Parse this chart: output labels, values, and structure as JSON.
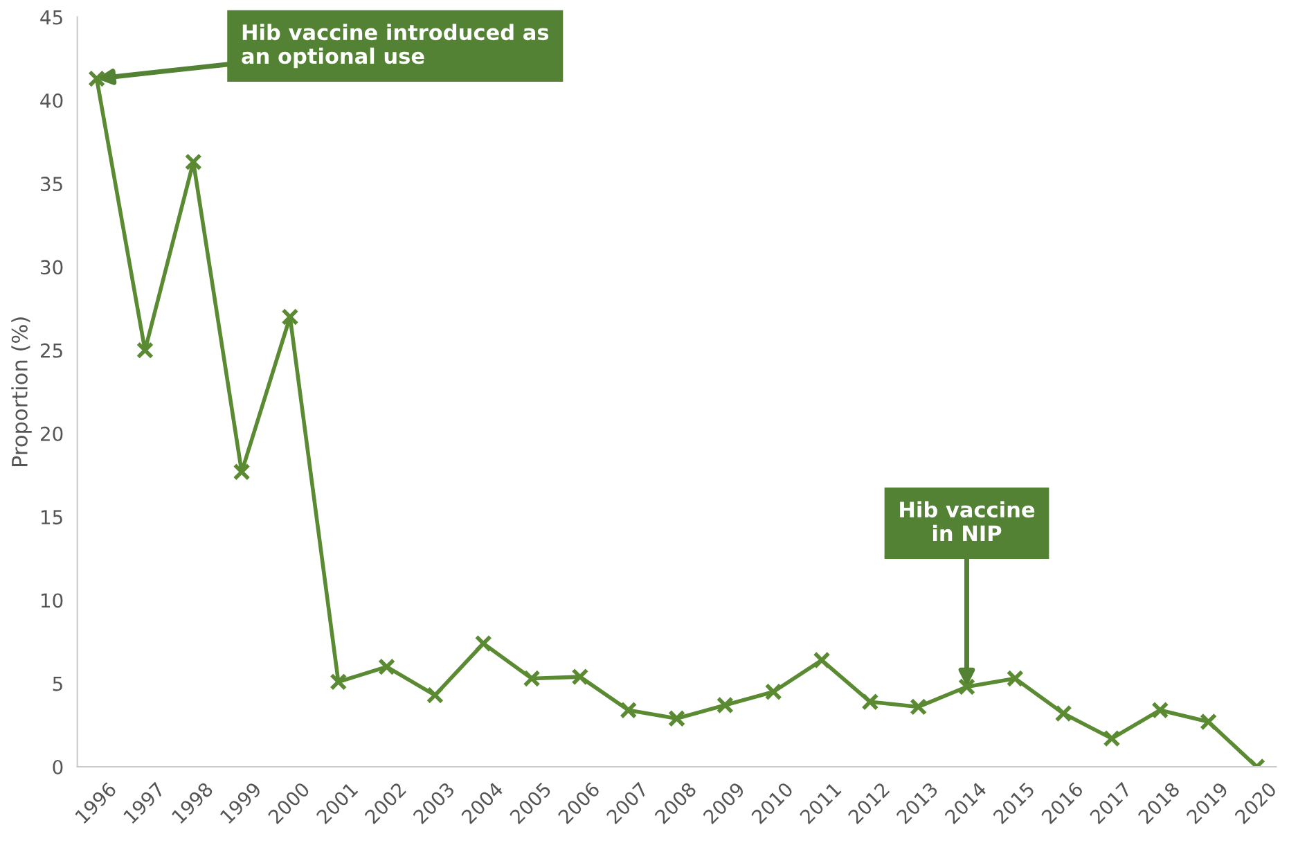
{
  "chart_data": {
    "type": "line",
    "ylabel": "Proportion (%)",
    "categories": [
      "1996",
      "1997",
      "1998",
      "1999",
      "2000",
      "2001",
      "2002",
      "2003",
      "2004",
      "2005",
      "2006",
      "2007",
      "2008",
      "2009",
      "2010",
      "2011",
      "2012",
      "2013",
      "2014",
      "2015",
      "2016",
      "2017",
      "2018",
      "2019",
      "2020"
    ],
    "series": [
      {
        "color": "#5a8a32",
        "values": [
          41.3,
          25.0,
          36.3,
          17.7,
          27.0,
          5.1,
          6.0,
          4.3,
          7.4,
          5.3,
          5.4,
          3.4,
          2.9,
          3.7,
          4.5,
          6.4,
          3.9,
          3.6,
          4.8,
          5.3,
          3.2,
          1.7,
          3.4,
          2.7,
          0
        ]
      }
    ],
    "ylim": [
      0,
      45
    ],
    "yticks": [
      0,
      5,
      10,
      15,
      20,
      25,
      30,
      35,
      40,
      45
    ],
    "marker": "cross",
    "line_style": "solid",
    "grid": false,
    "legend": false,
    "annotations": [
      {
        "text": "Hib vaccine introduced as\nan optional use",
        "x": "1996",
        "y": 41.3
      },
      {
        "text": "Hib vaccine\nin NIP",
        "x": "2014",
        "y": 4.8
      }
    ]
  }
}
